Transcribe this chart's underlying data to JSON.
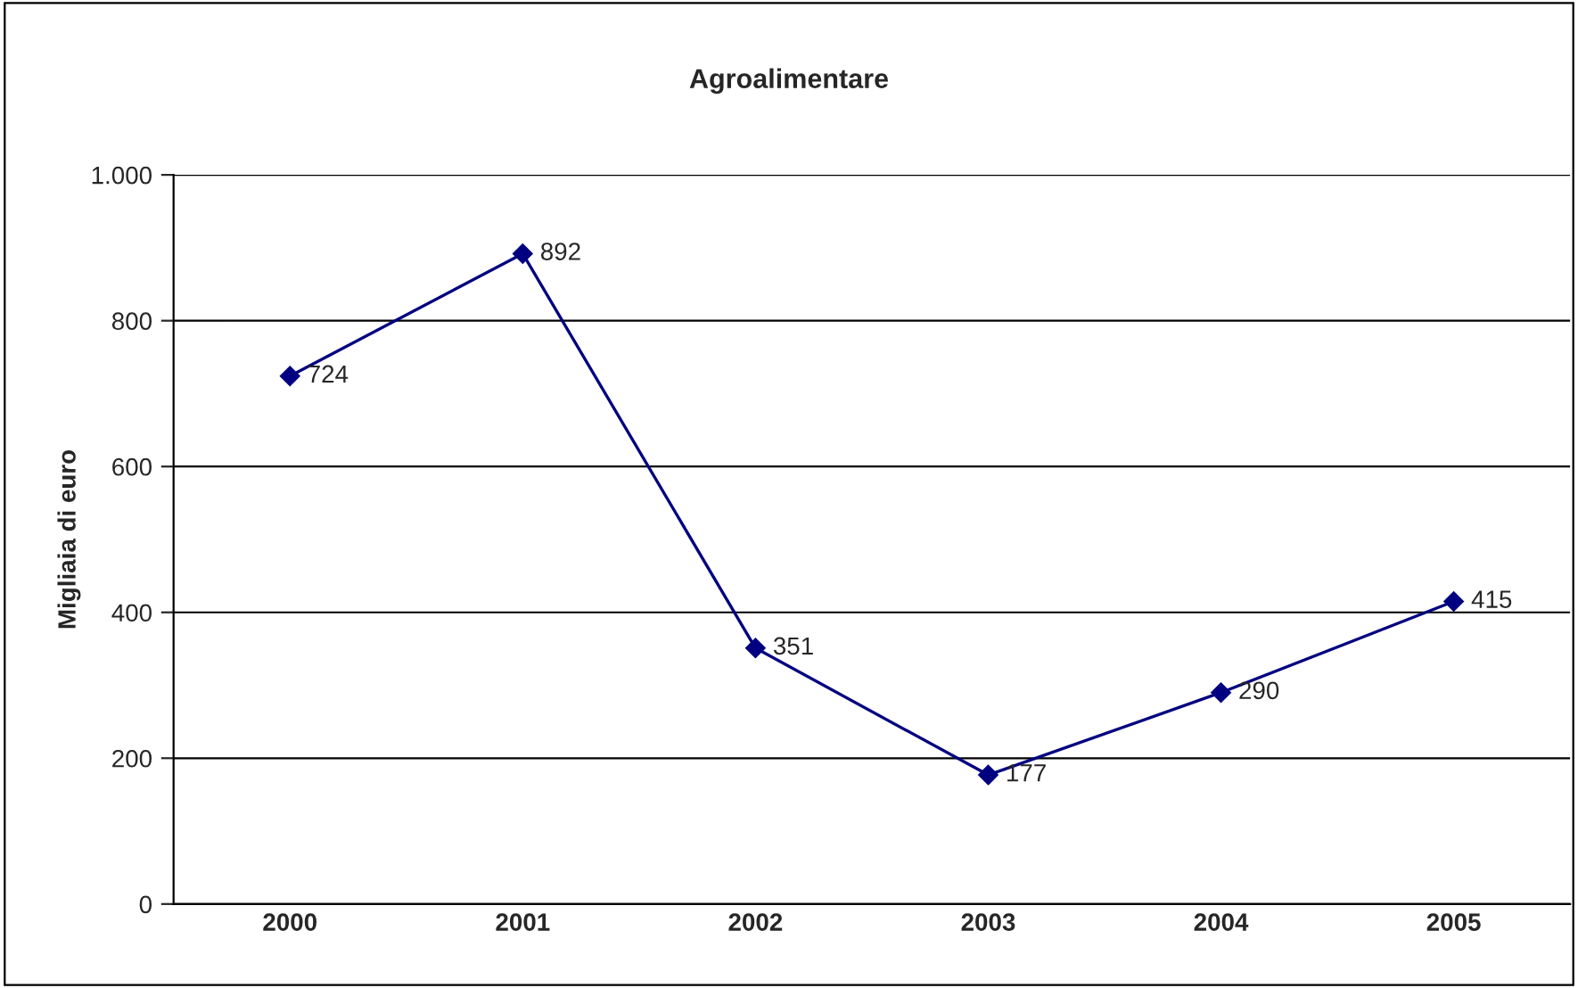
{
  "chart_data": {
    "type": "line",
    "title": "Agroalimentare",
    "ylabel": "Migliaia di euro",
    "categories": [
      "2000",
      "2001",
      "2002",
      "2003",
      "2004",
      "2005"
    ],
    "series": [
      {
        "color": "#000080",
        "values": [
          724,
          892,
          351,
          177,
          290,
          415
        ]
      }
    ],
    "ylim": [
      0,
      1000
    ],
    "yticks": [
      0,
      200,
      400,
      600,
      800,
      {
        "value": 1000,
        "label": "1.000"
      }
    ],
    "grid": "y",
    "marker": "diamond",
    "line_style": "solid",
    "data_labels": true
  }
}
